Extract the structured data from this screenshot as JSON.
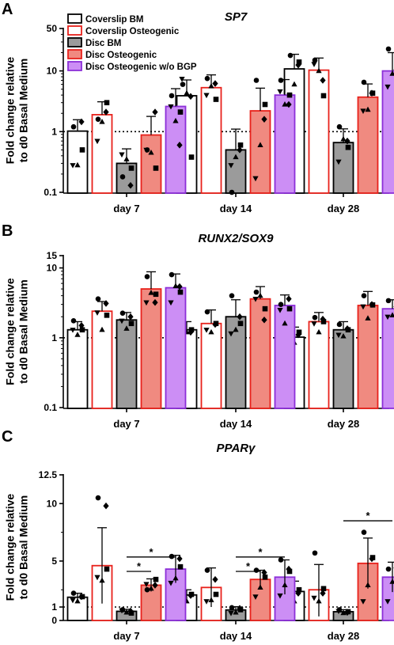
{
  "chart_data": [
    {
      "panel": "A",
      "type": "bar",
      "title": "SP7",
      "ylabel": [
        "Fold change relative",
        "to d0 Basal Medium"
      ],
      "yscale": "log",
      "ylim": [
        0.1,
        50
      ],
      "yticks": [
        {
          "v": 0.1,
          "label": "0.1"
        },
        {
          "v": 1,
          "label": "1"
        },
        {
          "v": 10,
          "label": "10"
        },
        {
          "v": 50,
          "label": "50"
        }
      ],
      "reference_line": 1,
      "categories": [
        "day 7",
        "day 14",
        "day 28"
      ],
      "legend": {
        "placement": "top-left"
      },
      "series": [
        {
          "name": "Coverslip BM",
          "values": [
            1.02,
            3.9,
            10.8
          ],
          "err": [
            0.55,
            3.2,
            8.0
          ],
          "points": [
            [
              1.2,
              0.5,
              0.28,
              0.28,
              1.45
            ],
            [
              6.0,
              0.38,
              4.3,
              7.4,
              3.8
            ],
            [
              18,
              14,
              6.0,
              3.9,
              12.5
            ]
          ]
        },
        {
          "name": "Coverslip Osteogenic",
          "values": [
            1.9,
            5.3,
            10.3
          ],
          "err": [
            1.2,
            3.3,
            6.0
          ],
          "points": [
            [
              1.6,
              3.0,
              1.45,
              0.7,
              2.1
            ],
            [
              7.5,
              3.4,
              5.6,
              4.0,
              6.2
            ],
            [
              15,
              3.9,
              10.0,
              13,
              7.0
            ]
          ]
        },
        {
          "name": "Disc BM",
          "values": [
            0.3,
            0.5,
            0.66
          ],
          "err": [
            0.22,
            0.6,
            0.45
          ],
          "points": [
            [
              0.18,
              0.25,
              0.35,
              0.42,
              0.13
            ],
            [
              0.1,
              0.6,
              0.38,
              0.28,
              0.5
            ],
            [
              1.2,
              0.55,
              0.75,
              0.32,
              0.7
            ]
          ]
        },
        {
          "name": "Disc Osteogenic",
          "values": [
            0.88,
            2.2,
            3.7
          ],
          "err": [
            0.9,
            3.0,
            2.4
          ],
          "points": [
            [
              0.5,
              0.25,
              0.45,
              0.5,
              2.1
            ],
            [
              7.0,
              2.8,
              0.6,
              0.17,
              1.6
            ],
            [
              6.5,
              4.3,
              2.3,
              2.2,
              4.3
            ]
          ]
        },
        {
          "name": "Disc Osteogenic w/o BGP",
          "values": [
            2.6,
            4.0,
            10.0
          ],
          "err": [
            2.5,
            3.2,
            10.0
          ],
          "points": [
            [
              3.9,
              2.1,
              1.5,
              2.6,
              0.6
            ],
            [
              7.0,
              4.0,
              2.8,
              4.6,
              2.8
            ],
            [
              23,
              5.8,
              9.0,
              5.5,
              10.5
            ]
          ]
        }
      ]
    },
    {
      "panel": "B",
      "type": "bar",
      "title": "RUNX2/SOX9",
      "ylabel": [
        "Fold change relative",
        "to d0 Basal Medium"
      ],
      "yscale": "log",
      "ylim": [
        0.1,
        15
      ],
      "yticks": [
        {
          "v": 0.1,
          "label": "0.1"
        },
        {
          "v": 1,
          "label": "1"
        },
        {
          "v": 10,
          "label": "10"
        },
        {
          "v": 15,
          "label": "15"
        }
      ],
      "reference_line": 1,
      "categories": [
        "day 7",
        "day 14",
        "day 28"
      ],
      "series": [
        {
          "name": "Coverslip BM",
          "values": [
            1.3,
            1.3,
            1.02
          ],
          "err": [
            0.4,
            0.4,
            0.4
          ],
          "points": [
            [
              1.75,
              1.3,
              1.1,
              1.3,
              1.5
            ],
            [
              1.75,
              1.3,
              1.2,
              1.25,
              1.2
            ],
            [
              1.55,
              1.2,
              0.85,
              0.9,
              1.1
            ]
          ]
        },
        {
          "name": "Coverslip Osteogenic",
          "values": [
            2.4,
            1.6,
            1.7
          ],
          "err": [
            0.9,
            0.9,
            0.6
          ],
          "points": [
            [
              3.6,
              2.1,
              1.3,
              2.3,
              3.1
            ],
            [
              2.35,
              1.6,
              1.2,
              1.3,
              1.55
            ],
            [
              1.95,
              1.7,
              1.2,
              1.6,
              1.85
            ]
          ]
        },
        {
          "name": "Disc BM",
          "values": [
            1.8,
            2.0,
            1.3
          ],
          "err": [
            0.5,
            1.5,
            0.4
          ],
          "points": [
            [
              2.25,
              1.6,
              1.35,
              1.75,
              2.0
            ],
            [
              4.0,
              1.6,
              1.3,
              1.15,
              2.0
            ],
            [
              1.55,
              1.3,
              1.05,
              1.1,
              1.35
            ]
          ]
        },
        {
          "name": "Disc Osteogenic",
          "values": [
            5.0,
            3.6,
            2.9
          ],
          "err": [
            3.8,
            1.8,
            1.7
          ],
          "points": [
            [
              7.5,
              4.2,
              4.4,
              3.2,
              3.2
            ],
            [
              4.5,
              2.6,
              4.0,
              3.6,
              1.8
            ],
            [
              4.0,
              2.95,
              1.9,
              2.8,
              3.0
            ]
          ]
        },
        {
          "name": "Disc Osteogenic w/o BGP",
          "values": [
            5.2,
            2.9,
            2.6
          ],
          "err": [
            3.0,
            1.2,
            0.9
          ],
          "points": [
            [
              8.0,
              4.5,
              5.5,
              3.2,
              5.4
            ],
            [
              3.0,
              2.6,
              1.6,
              2.5,
              3.6
            ],
            [
              3.4,
              2.6,
              2.1,
              2.0,
              2.8
            ]
          ]
        }
      ]
    },
    {
      "panel": "C",
      "type": "bar",
      "title": "PPARγ",
      "ylabel": [
        "Fold change relative",
        "to d0 Basal Medium"
      ],
      "yscale": "split",
      "yscale_note": "linear with axis break at 1",
      "ylim": [
        0,
        12.5
      ],
      "yticks": [
        {
          "v": 0,
          "label": "0"
        },
        {
          "v": 1,
          "label": "1"
        },
        {
          "v": 5,
          "label": "5"
        },
        {
          "v": 10,
          "label": "10"
        },
        {
          "v": 12.5,
          "label": "12.5"
        }
      ],
      "reference_line": 1,
      "categories": [
        "day 7",
        "day 14",
        "day 28"
      ],
      "significance": [
        {
          "category": "day 7",
          "from": 2,
          "to": 3,
          "y": 4.1,
          "label": "*"
        },
        {
          "category": "day 7",
          "from": 2,
          "to": 4,
          "y": 5.35,
          "label": "*"
        },
        {
          "category": "day 14",
          "from": 2,
          "to": 3,
          "y": 4.1,
          "label": "*"
        },
        {
          "category": "day 14",
          "from": 2,
          "to": 4,
          "y": 5.35,
          "label": "*"
        },
        {
          "category": "day 28",
          "from": 2,
          "to": 4,
          "y": 8.5,
          "label": "*"
        }
      ],
      "series": [
        {
          "name": "Coverslip BM",
          "values": [
            1.85,
            2.05,
            2.35
          ],
          "err": [
            0.35,
            0.45,
            0.9
          ],
          "points": [
            [
              2.2,
              1.9,
              1.5,
              1.6,
              1.9
            ],
            [
              2.7,
              2.1,
              1.5,
              1.7,
              2.0
            ],
            [
              3.3,
              2.5,
              1.5,
              1.5,
              2.2
            ]
          ]
        },
        {
          "name": "Coverslip Osteogenic",
          "values": [
            4.6,
            2.7,
            2.5
          ],
          "err": [
            3.3,
            1.7,
            2.2
          ],
          "points": [
            [
              10.5,
              4.3,
              3.3,
              3.6,
              9.8
            ],
            [
              4.2,
              2.1,
              1.6,
              1.5,
              3.4
            ],
            [
              5.7,
              2.6,
              1.5,
              1.8,
              2.2
            ]
          ]
        },
        {
          "name": "Disc BM",
          "values": [
            0.68,
            0.78,
            0.65
          ],
          "err": [
            0.15,
            0.25,
            0.15
          ],
          "points": [
            [
              0.8,
              0.55,
              0.6,
              0.75,
              0.7
            ],
            [
              0.95,
              0.8,
              0.6,
              0.55,
              0.9
            ],
            [
              0.8,
              0.65,
              0.55,
              0.7,
              0.6
            ]
          ]
        },
        {
          "name": "Disc Osteogenic",
          "values": [
            2.9,
            3.4,
            4.8
          ],
          "err": [
            0.55,
            0.8,
            2.2
          ],
          "points": [
            [
              2.5,
              3.4,
              2.6,
              3.0,
              2.9
            ],
            [
              4.2,
              3.6,
              2.7,
              1.9,
              4.0
            ],
            [
              7.5,
              5.3,
              2.9,
              1.5,
              5.2
            ]
          ]
        },
        {
          "name": "Disc Osteogenic w/o BGP",
          "values": [
            4.3,
            3.6,
            3.6
          ],
          "err": [
            1.2,
            1.5,
            1.3
          ],
          "points": [
            [
              5.4,
              4.5,
              3.5,
              3.1,
              5.2
            ],
            [
              5.1,
              4.1,
              2.9,
              2.0,
              4.3
            ],
            [
              4.3,
              4.0,
              3.2,
              1.5,
              4.4
            ]
          ]
        }
      ]
    }
  ],
  "series_styles": [
    {
      "fill": "#ffffff",
      "stroke": "#000000"
    },
    {
      "fill": "#ffffff",
      "stroke": "#e8211b"
    },
    {
      "fill": "#9b9b9b",
      "stroke": "#000000"
    },
    {
      "fill": "#f08a80",
      "stroke": "#e8211b"
    },
    {
      "fill": "#cc8ef5",
      "stroke": "#8c2fd8"
    }
  ],
  "marker_shapes": [
    "circle",
    "square",
    "triangle",
    "down-triangle",
    "diamond"
  ]
}
